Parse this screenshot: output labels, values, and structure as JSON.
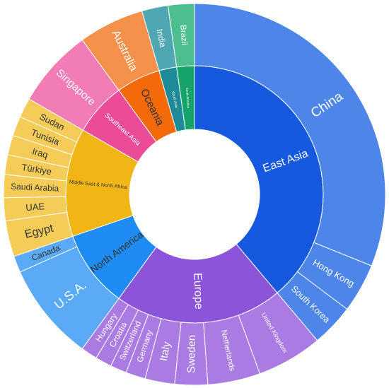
{
  "chart_data": {
    "type": "sunburst",
    "title": "",
    "inner_ring": [
      {
        "name": "East Asia",
        "color": "#1659DE"
      },
      {
        "name": "Europe",
        "color": "#8C54D9"
      },
      {
        "name": "North America",
        "color": "#1F8CF5"
      },
      {
        "name": "Middle East & North Africa",
        "color": "#F1B516"
      },
      {
        "name": "Southeast Asia",
        "color": "#EC4B97"
      },
      {
        "name": "Oceania",
        "color": "#F26A0A"
      },
      {
        "name": "South Asia",
        "color": "#1E8B99"
      },
      {
        "name": "South America",
        "color": "#16A36A"
      }
    ],
    "outer_ring": [
      {
        "name": "China",
        "parent": "East Asia",
        "color": "#4D86E8"
      },
      {
        "name": "Hong Kong",
        "parent": "East Asia",
        "color": "#4D86E8"
      },
      {
        "name": "South Korea",
        "parent": "East Asia",
        "color": "#4D86E8"
      },
      {
        "name": "United Kingdom",
        "parent": "Europe",
        "color": "#A97BE3"
      },
      {
        "name": "Netherlands",
        "parent": "Europe",
        "color": "#A97BE3"
      },
      {
        "name": "Sweden",
        "parent": "Europe",
        "color": "#A97BE3"
      },
      {
        "name": "Italy",
        "parent": "Europe",
        "color": "#A97BE3"
      },
      {
        "name": "Germany",
        "parent": "Europe",
        "color": "#A97BE3"
      },
      {
        "name": "Switzerland",
        "parent": "Europe",
        "color": "#A97BE3"
      },
      {
        "name": "Croatia",
        "parent": "Europe",
        "color": "#A97BE3"
      },
      {
        "name": "Hungary",
        "parent": "Europe",
        "color": "#A97BE3"
      },
      {
        "name": "U.S.A.",
        "parent": "North America",
        "color": "#5AAAF8"
      },
      {
        "name": "Canada",
        "parent": "North America",
        "color": "#5AAAF8"
      },
      {
        "name": "Egypt",
        "parent": "Middle East & North Africa",
        "color": "#F5CC58"
      },
      {
        "name": "UAE",
        "parent": "Middle East & North Africa",
        "color": "#F5CC58"
      },
      {
        "name": "Saudi Arabia",
        "parent": "Middle East & North Africa",
        "color": "#F5CC58"
      },
      {
        "name": "Türkiye",
        "parent": "Middle East & North Africa",
        "color": "#F5CC58"
      },
      {
        "name": "Iraq",
        "parent": "Middle East & North Africa",
        "color": "#F5CC58"
      },
      {
        "name": "Tunisia",
        "parent": "Middle East & North Africa",
        "color": "#F5CC58"
      },
      {
        "name": "Sudan",
        "parent": "Middle East & North Africa",
        "color": "#F5CC58"
      },
      {
        "name": "Singapore",
        "parent": "Southeast Asia",
        "color": "#F27CB5"
      },
      {
        "name": "Australia",
        "parent": "Oceania",
        "color": "#F5914A"
      },
      {
        "name": "India",
        "parent": "South Asia",
        "color": "#4FA7B3"
      },
      {
        "name": "Brazil",
        "parent": "South America",
        "color": "#4DBE8E"
      }
    ]
  }
}
